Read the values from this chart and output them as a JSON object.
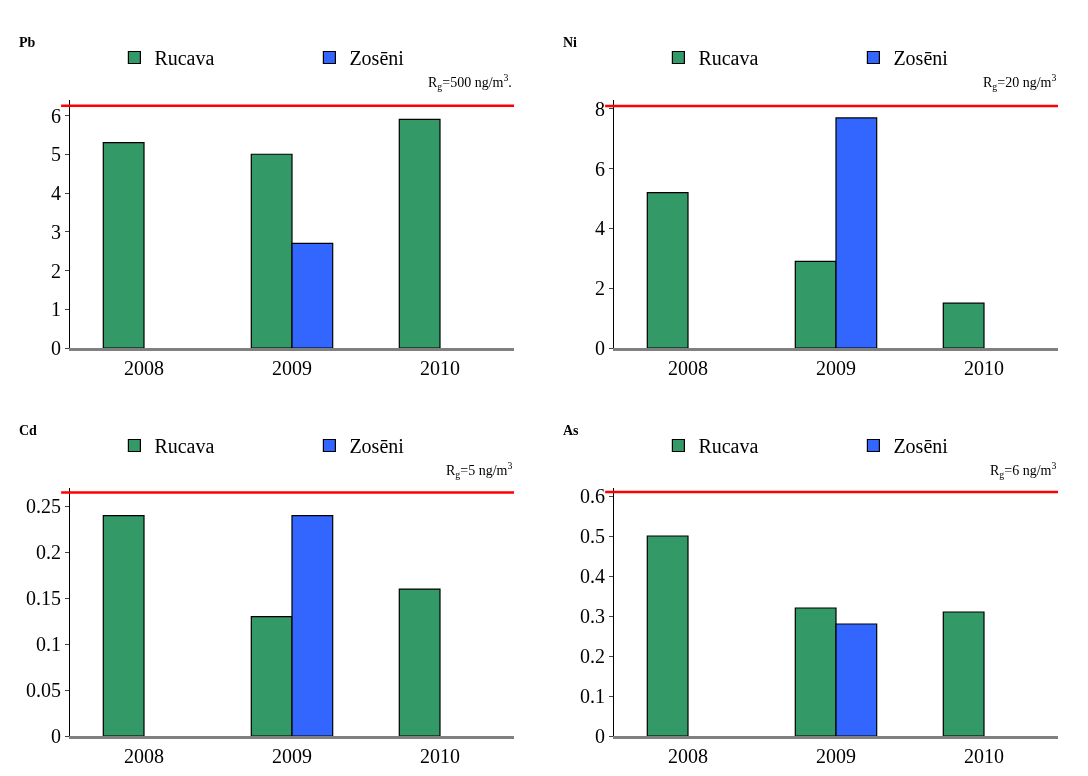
{
  "chart_data": [
    {
      "type": "bar",
      "title": "Pb",
      "categories": [
        "2008",
        "2009",
        "2010"
      ],
      "series": [
        {
          "name": "Rucava",
          "color": "#339966",
          "values": [
            5.3,
            5.0,
            5.9
          ]
        },
        {
          "name": "Zosēni",
          "color": "#3366ff",
          "values": [
            null,
            2.7,
            null
          ]
        }
      ],
      "ylim": [
        0,
        6.4
      ],
      "yticks": [
        0,
        1,
        2,
        3,
        4,
        5,
        6
      ],
      "grid": false,
      "legend": "top",
      "ref_lines": [
        {
          "axis": "y",
          "value": 6.25,
          "color": "#ff0000"
        }
      ],
      "annotations": [
        "R$_{g}$=500 ng/m$^{3}$."
      ]
    },
    {
      "type": "bar",
      "title": "Ni",
      "categories": [
        "2008",
        "2009",
        "2010"
      ],
      "series": [
        {
          "name": "Rucava",
          "color": "#339966",
          "values": [
            5.2,
            2.9,
            1.5
          ]
        },
        {
          "name": "Zosēni",
          "color": "#3366ff",
          "values": [
            null,
            7.7,
            null
          ]
        }
      ],
      "ylim": [
        0,
        8.3
      ],
      "yticks": [
        0,
        2,
        4,
        6,
        8
      ],
      "grid": false,
      "legend": "top",
      "ref_lines": [
        {
          "axis": "y",
          "value": 8.1,
          "color": "#ff0000"
        }
      ],
      "annotations": [
        "R$_{g}$=20 ng/m$^{3}$"
      ]
    },
    {
      "type": "bar",
      "title": "Cd",
      "categories": [
        "2008",
        "2009",
        "2010"
      ],
      "series": [
        {
          "name": "Rucava",
          "color": "#339966",
          "values": [
            0.24,
            0.13,
            0.16
          ]
        },
        {
          "name": "Zosēni",
          "color": "#3366ff",
          "values": [
            null,
            0.24,
            null
          ]
        }
      ],
      "ylim": [
        0,
        0.27
      ],
      "yticks": [
        0,
        0.05,
        0.1,
        0.15,
        0.2,
        0.25
      ],
      "grid": false,
      "legend": "top",
      "ref_lines": [
        {
          "axis": "y",
          "value": 0.265,
          "color": "#ff0000"
        }
      ],
      "annotations": [
        "R$_{g}$=5 ng/m$^{3}$"
      ]
    },
    {
      "type": "bar",
      "title": "As",
      "categories": [
        "2008",
        "2009",
        "2010"
      ],
      "series": [
        {
          "name": "Rucava",
          "color": "#339966",
          "values": [
            0.5,
            0.32,
            0.31
          ]
        },
        {
          "name": "Zosēni",
          "color": "#3366ff",
          "values": [
            null,
            0.28,
            null
          ]
        }
      ],
      "ylim": [
        0,
        0.62
      ],
      "yticks": [
        0,
        0.1,
        0.2,
        0.3,
        0.4,
        0.5,
        0.6
      ],
      "grid": false,
      "legend": "top",
      "ref_lines": [
        {
          "axis": "y",
          "value": 0.61,
          "color": "#ff0000"
        }
      ],
      "annotations": [
        "R$_{g}$=6 ng/m$^{3}$"
      ]
    }
  ]
}
